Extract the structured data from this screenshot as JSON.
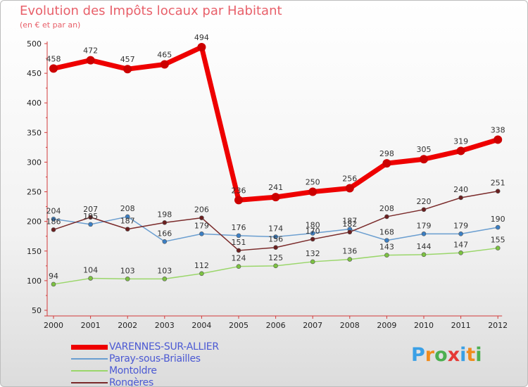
{
  "title": "Evolution des Impôts locaux par Habitant",
  "subtitle": "(en € et par an)",
  "logo": {
    "text": "Proxiti",
    "colors": [
      "#3aa0e6",
      "#f08c1e",
      "#4caf50",
      "#e53935",
      "#3aa0e6",
      "#f08c1e",
      "#4caf50"
    ]
  },
  "chart_data": {
    "type": "line",
    "categories": [
      "2000",
      "2001",
      "2002",
      "2003",
      "2004",
      "2005",
      "2006",
      "2007",
      "2008",
      "2009",
      "2010",
      "2011",
      "2012"
    ],
    "ylim": [
      50,
      500
    ],
    "yticks": [
      50,
      100,
      150,
      200,
      250,
      300,
      350,
      400,
      450,
      500
    ],
    "grid": false,
    "legend_position": "bottom-left",
    "series": [
      {
        "name": "VARENNES-SUR-ALLIER",
        "color": "#ee0000",
        "marker": "#cc0000",
        "width": 7,
        "radius": 6,
        "values": [
          458,
          472,
          457,
          465,
          494,
          236,
          241,
          250,
          256,
          298,
          305,
          319,
          338
        ]
      },
      {
        "name": "Paray-sous-Briailles",
        "color": "#6a9ed0",
        "marker": "#3b7fc4",
        "width": 1.5,
        "radius": 3,
        "values": [
          204,
          195,
          208,
          166,
          179,
          176,
          174,
          180,
          187,
          168,
          179,
          179,
          190
        ]
      },
      {
        "name": "Montoldre",
        "color": "#9ad66a",
        "marker": "#7cc241",
        "width": 1.5,
        "radius": 3,
        "values": [
          94,
          104,
          103,
          103,
          112,
          124,
          125,
          132,
          136,
          143,
          144,
          147,
          155
        ]
      },
      {
        "name": "Rongères",
        "color": "#7a2a2a",
        "marker": "#6b1f1f",
        "width": 1.5,
        "radius": 3,
        "values": [
          186,
          207,
          187,
          198,
          206,
          151,
          156,
          170,
          182,
          208,
          220,
          240,
          251
        ]
      }
    ]
  }
}
